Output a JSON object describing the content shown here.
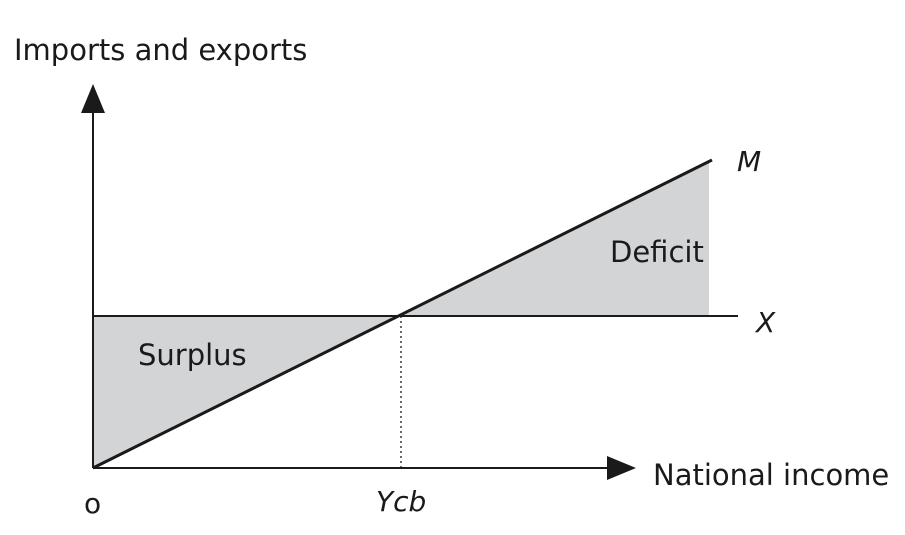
{
  "diagram": {
    "y_axis_title": "Imports and exports",
    "x_axis_title": "National income",
    "origin_label": "o",
    "equilibrium_label": "Ycb",
    "import_line_label": "M",
    "export_line_label": "X",
    "surplus_label": "Surplus",
    "deficit_label": "Deficit",
    "shade_color": "#d3d4d6",
    "line_color": "#1a1a1a"
  }
}
